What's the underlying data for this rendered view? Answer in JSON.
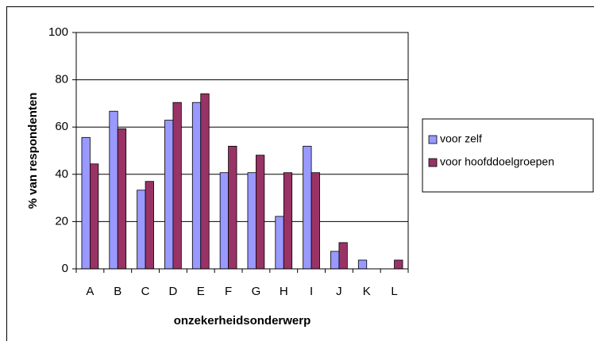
{
  "chart_data": {
    "type": "bar",
    "xlabel": "onzekerheidsonderwerp",
    "ylabel": "% van respondenten",
    "categories": [
      "A",
      "B",
      "C",
      "D",
      "E",
      "F",
      "G",
      "H",
      "I",
      "J",
      "K",
      "L"
    ],
    "series": [
      {
        "name": "voor zelf",
        "color": "#9999ff",
        "values": [
          55.6,
          66.7,
          33.3,
          62.9,
          70.4,
          40.7,
          40.7,
          22.2,
          51.9,
          7.4,
          3.7,
          0
        ]
      },
      {
        "name": "voor hoofddoelgroepen",
        "color": "#993366",
        "values": [
          44.4,
          59.3,
          37,
          70.4,
          74.1,
          51.9,
          48.1,
          40.7,
          40.7,
          11.1,
          0,
          3.7
        ]
      }
    ],
    "ylim": [
      0,
      100
    ],
    "yticks": [
      0,
      20,
      40,
      60,
      80,
      100
    ],
    "grid": true,
    "legend": "right"
  }
}
